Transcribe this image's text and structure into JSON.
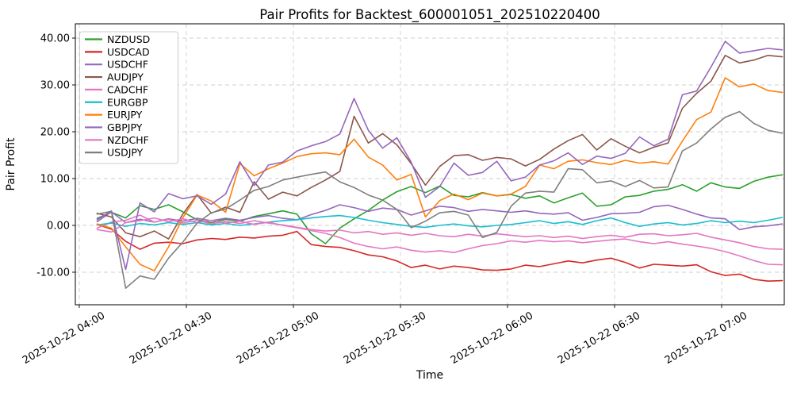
{
  "chart_data": {
    "type": "line",
    "title": "Pair Profits for Backtest_600001051_202510220400",
    "xlabel": "Time",
    "ylabel": "Pair Profit",
    "x_unit": "minutes after 2025-10-22 04:00",
    "ylim": [
      -17,
      43
    ],
    "grid": true,
    "grid_style": "dashed",
    "legend_position": "upper left",
    "xticks": {
      "minutes": [
        0,
        30,
        60,
        90,
        120,
        150,
        180
      ],
      "labels": [
        "2025-10-22 04:00",
        "2025-10-22 04:30",
        "2025-10-22 05:00",
        "2025-10-22 05:30",
        "2025-10-22 06:00",
        "2025-10-22 06:30",
        "2025-10-22 07:00"
      ]
    },
    "yticks": {
      "values": [
        40,
        30,
        20,
        10,
        0,
        -10
      ],
      "labels": [
        "40.00",
        "30.00",
        "20.00",
        "10.00",
        "0.00",
        "-10.00"
      ]
    },
    "x": [
      5,
      9,
      13,
      17,
      21,
      25,
      29,
      33,
      37,
      41,
      45,
      49,
      53,
      57,
      61,
      65,
      69,
      73,
      77,
      81,
      85,
      89,
      93,
      97,
      101,
      105,
      109,
      113,
      117,
      121,
      125,
      129,
      133,
      137,
      141,
      145,
      149,
      153,
      157,
      161,
      165,
      169,
      173,
      177,
      181,
      185,
      189,
      193,
      197
    ],
    "series": [
      {
        "name": "NZDUSD",
        "color": "#2ca02c",
        "values": [
          1.5,
          2.8,
          1.6,
          4.2,
          3.4,
          4.4,
          2.9,
          1.2,
          0.6,
          1.3,
          0.9,
          1.9,
          2.5,
          3.1,
          2.4,
          -1.8,
          -3.9,
          -0.6,
          1.4,
          3.2,
          5.4,
          7.2,
          8.3,
          7.0,
          8.4,
          6.4,
          6.1,
          7.0,
          6.3,
          6.6,
          5.8,
          6.3,
          4.8,
          5.9,
          6.9,
          4.1,
          4.4,
          6.1,
          6.4,
          7.3,
          7.7,
          8.7,
          7.3,
          9.1,
          8.2,
          7.9,
          9.4,
          10.3,
          10.8
        ]
      },
      {
        "name": "USDCAD",
        "color": "#d62728",
        "values": [
          0.2,
          -0.8,
          -3.4,
          -5.1,
          -3.8,
          -3.6,
          -3.9,
          -3.1,
          -2.8,
          -3.0,
          -2.5,
          -2.7,
          -2.3,
          -2.1,
          -1.3,
          -4.1,
          -4.5,
          -4.7,
          -5.4,
          -6.3,
          -6.7,
          -7.6,
          -9.0,
          -8.5,
          -9.3,
          -8.7,
          -9.0,
          -9.5,
          -9.6,
          -9.3,
          -8.5,
          -8.8,
          -8.2,
          -7.6,
          -8.0,
          -7.4,
          -7.0,
          -7.9,
          -9.1,
          -8.3,
          -8.5,
          -8.7,
          -8.4,
          -9.9,
          -10.7,
          -10.4,
          -11.5,
          -11.9,
          -11.8
        ]
      },
      {
        "name": "USDCHF",
        "color": "#9467bd",
        "values": [
          0.8,
          2.9,
          0.6,
          1.3,
          0.7,
          1.4,
          0.9,
          1.5,
          1.0,
          1.5,
          1.1,
          1.7,
          2.1,
          1.5,
          1.2,
          2.3,
          3.2,
          4.4,
          3.8,
          3.0,
          3.7,
          3.4,
          2.2,
          3.1,
          4.1,
          3.8,
          3.0,
          3.4,
          3.1,
          2.8,
          3.1,
          2.6,
          2.4,
          2.7,
          1.1,
          1.7,
          2.5,
          2.6,
          2.8,
          4.0,
          4.3,
          3.4,
          2.4,
          1.6,
          1.4,
          -0.9,
          -0.3,
          -0.1,
          0.3
        ]
      },
      {
        "name": "AUDJPY",
        "color": "#8c564b",
        "values": [
          2.6,
          1.8,
          -1.6,
          -2.4,
          -1.2,
          -2.9,
          2.4,
          6.6,
          2.6,
          3.9,
          2.8,
          9.3,
          5.6,
          7.1,
          6.3,
          8.1,
          9.7,
          11.5,
          23.3,
          17.6,
          19.6,
          17.2,
          13.2,
          8.6,
          12.6,
          14.9,
          15.1,
          13.9,
          14.5,
          14.2,
          12.7,
          14.1,
          16.3,
          18.1,
          19.4,
          16.1,
          18.5,
          16.9,
          15.5,
          16.7,
          17.6,
          25.0,
          28.2,
          30.8,
          36.3,
          34.7,
          35.3,
          36.3,
          36.0
        ]
      },
      {
        "name": "CADCHF",
        "color": "#e377c2",
        "values": [
          -0.6,
          0.7,
          1.1,
          2.2,
          0.7,
          1.3,
          0.5,
          1.1,
          0.3,
          0.9,
          0.4,
          1.0,
          0.5,
          0.1,
          -0.4,
          -0.9,
          -1.2,
          -1.0,
          -1.6,
          -1.3,
          -1.9,
          -1.6,
          -2.1,
          -1.7,
          -2.2,
          -2.4,
          -1.9,
          -2.3,
          -1.8,
          -2.1,
          -2.4,
          -2.2,
          -2.6,
          -2.3,
          -2.8,
          -2.4,
          -2.1,
          -2.5,
          -1.9,
          -1.8,
          -2.2,
          -2.0,
          -1.7,
          -2.5,
          -3.1,
          -3.7,
          -4.5,
          -5.0,
          -5.1
        ]
      },
      {
        "name": "EURGBP",
        "color": "#17becf",
        "values": [
          0.1,
          0.5,
          -0.2,
          0.4,
          0.1,
          0.6,
          0.2,
          0.6,
          0.1,
          0.4,
          0.0,
          0.3,
          0.7,
          1.0,
          1.2,
          1.6,
          1.9,
          2.1,
          1.7,
          1.1,
          0.6,
          0.2,
          -0.2,
          -0.4,
          0.0,
          0.3,
          -0.1,
          -0.3,
          0.0,
          0.2,
          0.6,
          1.0,
          0.4,
          0.8,
          0.2,
          1.0,
          1.6,
          0.6,
          -0.2,
          0.3,
          0.6,
          0.1,
          0.4,
          1.0,
          0.6,
          0.9,
          0.6,
          1.1,
          1.7
        ]
      },
      {
        "name": "EURJPY",
        "color": "#ff7f0e",
        "values": [
          0.3,
          -0.6,
          -4.6,
          -8.3,
          -9.7,
          -4.6,
          1.6,
          6.5,
          5.2,
          2.8,
          13.2,
          10.6,
          12.1,
          13.3,
          14.7,
          15.3,
          15.5,
          15.1,
          18.4,
          14.6,
          12.9,
          9.7,
          10.9,
          1.8,
          5.3,
          6.7,
          5.5,
          6.9,
          6.3,
          6.7,
          8.3,
          12.9,
          12.1,
          13.7,
          14.0,
          13.4,
          13.0,
          13.9,
          13.3,
          13.6,
          13.1,
          18.0,
          22.6,
          24.2,
          31.5,
          29.6,
          30.2,
          28.8,
          28.4
        ]
      },
      {
        "name": "GBPJPY",
        "color": "#9467bd",
        "values": [
          1.2,
          3.1,
          -9.4,
          4.8,
          2.9,
          6.8,
          5.7,
          6.3,
          4.5,
          6.7,
          13.6,
          8.5,
          12.9,
          13.5,
          15.9,
          17.0,
          17.9,
          19.5,
          27.1,
          20.3,
          16.5,
          18.7,
          13.5,
          6.0,
          8.3,
          13.3,
          10.7,
          11.3,
          13.7,
          9.5,
          10.3,
          12.9,
          13.8,
          15.5,
          13.0,
          14.8,
          14.3,
          15.4,
          18.9,
          17.0,
          18.4,
          27.9,
          28.7,
          33.8,
          39.3,
          36.8,
          37.3,
          37.8,
          37.5
        ]
      },
      {
        "name": "NZDCHF",
        "color": "#e377c2",
        "values": [
          -0.9,
          -1.4,
          0.6,
          1.0,
          1.6,
          0.8,
          1.4,
          0.6,
          1.1,
          0.5,
          0.9,
          0.2,
          0.7,
          0.0,
          -0.5,
          -1.1,
          -1.7,
          -2.6,
          -3.8,
          -4.5,
          -5.0,
          -4.6,
          -5.3,
          -5.7,
          -5.4,
          -5.8,
          -5.0,
          -4.3,
          -3.9,
          -3.3,
          -3.6,
          -3.2,
          -3.5,
          -3.3,
          -3.7,
          -3.4,
          -3.1,
          -2.9,
          -3.5,
          -3.9,
          -3.5,
          -4.0,
          -4.4,
          -4.9,
          -5.6,
          -6.5,
          -7.5,
          -8.3,
          -8.4
        ]
      },
      {
        "name": "USDJPY",
        "color": "#7f7f7f",
        "values": [
          2.4,
          3.0,
          -13.4,
          -10.8,
          -11.5,
          -7.0,
          -3.6,
          0.5,
          2.7,
          3.5,
          5.4,
          7.5,
          8.3,
          9.7,
          10.3,
          10.9,
          11.4,
          9.3,
          8.1,
          6.5,
          5.4,
          3.4,
          -0.5,
          0.9,
          2.7,
          3.0,
          2.2,
          -2.6,
          -1.5,
          4.1,
          6.9,
          7.3,
          7.1,
          12.1,
          11.9,
          9.1,
          9.5,
          8.3,
          9.6,
          8.0,
          8.2,
          15.9,
          17.6,
          20.6,
          23.1,
          24.3,
          21.8,
          20.3,
          19.7
        ]
      }
    ],
    "style": {
      "grid_color": "#bbbbbb",
      "spine_color": "#000000",
      "background": "#ffffff",
      "line_width": 1.6
    }
  }
}
